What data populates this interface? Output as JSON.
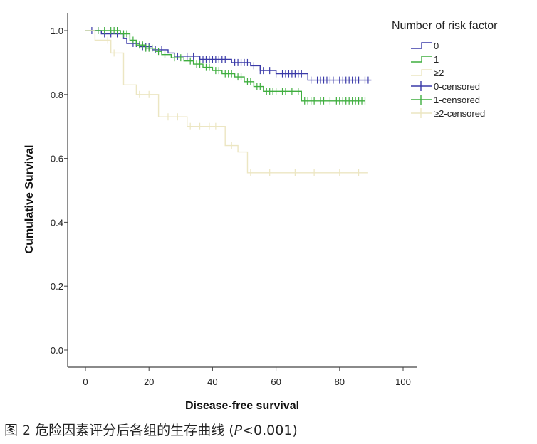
{
  "caption": {
    "prefix": "图 2 危险因素评分后各组的生存曲线 (",
    "p_symbol": "P",
    "p_value": "<0.001",
    "suffix": ")"
  },
  "chart_data": {
    "type": "line",
    "subtype": "kaplan-meier",
    "xlabel": "Disease-free survival",
    "ylabel": "Cumulative Survival",
    "xlim": [
      0,
      100
    ],
    "ylim": [
      0,
      1.0
    ],
    "x_ticks": [
      "0",
      "20",
      "40",
      "60",
      "80",
      "100"
    ],
    "y_ticks": [
      "0.0",
      "0.2",
      "0.4",
      "0.6",
      "0.8",
      "1.0"
    ],
    "grid": false,
    "legend": {
      "title": "Number of risk factor",
      "position": "top-right",
      "entries": [
        "0",
        "1",
        "≥2",
        "0-censored",
        "1-censored",
        "≥2-censored"
      ]
    },
    "colors": {
      "0": "#3a3aa8",
      "1": "#3fae3f",
      "ge2": "#ece6c2"
    },
    "series": [
      {
        "name": "0",
        "color": "#3a3aa8",
        "steps": [
          [
            0,
            1.0
          ],
          [
            5,
            0.99
          ],
          [
            12,
            0.975
          ],
          [
            13,
            0.96
          ],
          [
            17,
            0.95
          ],
          [
            21,
            0.94
          ],
          [
            26,
            0.93
          ],
          [
            28,
            0.92
          ],
          [
            36,
            0.91
          ],
          [
            46,
            0.9
          ],
          [
            52,
            0.89
          ],
          [
            55,
            0.875
          ],
          [
            60,
            0.865
          ],
          [
            70,
            0.845
          ],
          [
            90,
            0.845
          ]
        ],
        "censored": [
          2,
          4,
          6,
          8,
          10,
          15,
          16,
          18,
          19,
          20,
          22,
          24,
          29,
          32,
          34,
          36,
          37,
          38,
          39,
          40,
          41,
          42,
          43,
          44,
          47,
          48,
          49,
          50,
          51,
          53,
          55,
          56,
          58,
          60,
          62,
          63,
          64,
          65,
          66,
          67,
          68,
          71,
          73,
          74,
          75,
          76,
          77,
          78,
          80,
          81,
          82,
          83,
          84,
          85,
          86,
          88,
          89
        ]
      },
      {
        "name": "1",
        "color": "#3fae3f",
        "steps": [
          [
            0,
            1.0
          ],
          [
            11,
            0.99
          ],
          [
            14,
            0.97
          ],
          [
            16,
            0.955
          ],
          [
            19,
            0.945
          ],
          [
            22,
            0.935
          ],
          [
            24,
            0.925
          ],
          [
            27,
            0.915
          ],
          [
            31,
            0.905
          ],
          [
            34,
            0.895
          ],
          [
            37,
            0.885
          ],
          [
            40,
            0.875
          ],
          [
            43,
            0.865
          ],
          [
            47,
            0.855
          ],
          [
            50,
            0.84
          ],
          [
            53,
            0.825
          ],
          [
            56,
            0.81
          ],
          [
            68,
            0.78
          ],
          [
            88,
            0.78
          ]
        ],
        "censored": [
          4,
          6,
          8,
          9,
          10,
          12,
          13,
          15,
          17,
          18,
          19,
          20,
          21,
          23,
          25,
          28,
          30,
          33,
          35,
          36,
          38,
          39,
          41,
          42,
          44,
          45,
          46,
          48,
          49,
          51,
          52,
          54,
          55,
          57,
          58,
          59,
          60,
          62,
          63,
          65,
          67,
          69,
          70,
          71,
          72,
          74,
          75,
          77,
          79,
          80,
          81,
          82,
          83,
          84,
          85,
          86,
          87,
          88
        ]
      },
      {
        "name": "≥2",
        "color": "#ece6c2",
        "steps": [
          [
            0,
            1.0
          ],
          [
            3,
            0.97
          ],
          [
            8,
            0.93
          ],
          [
            12,
            0.83
          ],
          [
            16,
            0.8
          ],
          [
            23,
            0.73
          ],
          [
            32,
            0.7
          ],
          [
            44,
            0.64
          ],
          [
            48,
            0.62
          ],
          [
            51,
            0.555
          ],
          [
            89,
            0.555
          ]
        ],
        "censored": [
          7,
          9,
          17,
          20,
          26,
          29,
          33,
          36,
          39,
          41,
          46,
          52,
          58,
          66,
          72,
          80,
          86
        ]
      }
    ]
  }
}
